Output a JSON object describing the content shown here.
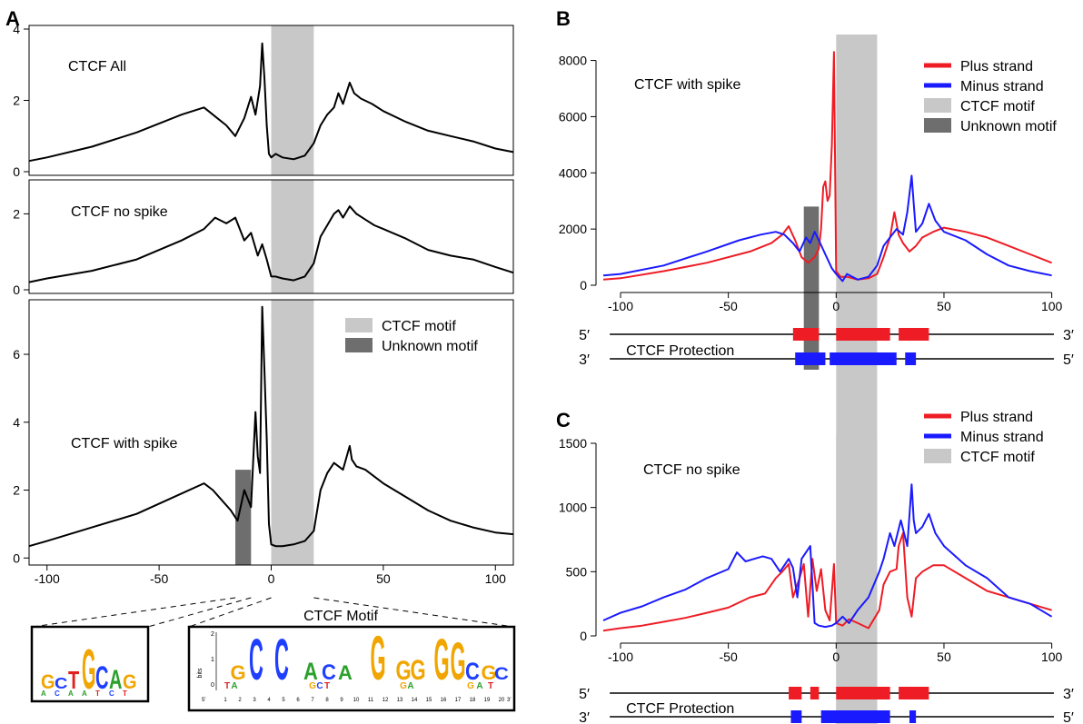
{
  "panel_labels": {
    "A": "A",
    "B": "B",
    "C": "C"
  },
  "colors": {
    "plus": "#ee1c25",
    "minus": "#1a1aff",
    "ctcf_motif": "#c8c8c8",
    "unknown_motif": "#6e6e6e",
    "profile": "#000000"
  },
  "chart_data": [
    {
      "id": "A1",
      "type": "line",
      "title": "CTCF All",
      "xlim": [
        -108,
        108
      ],
      "ylim": [
        0,
        4
      ],
      "yticks": [
        0,
        2,
        4
      ],
      "shade": {
        "ctcf_motif": [
          0,
          19
        ]
      },
      "series": [
        {
          "x": [
            -108,
            -100,
            -80,
            -60,
            -40,
            -30,
            -25,
            -20,
            -16,
            -12,
            -9,
            -7,
            -5,
            -4,
            -3,
            -2,
            -1,
            0,
            2,
            5,
            10,
            15,
            19,
            22,
            25,
            28,
            30,
            32,
            35,
            37,
            40,
            45,
            50,
            60,
            70,
            80,
            90,
            100,
            108
          ],
          "values": [
            0.3,
            0.4,
            0.7,
            1.1,
            1.6,
            1.8,
            1.55,
            1.3,
            1.0,
            1.5,
            2.1,
            1.6,
            2.4,
            3.6,
            2.6,
            1.3,
            0.5,
            0.4,
            0.5,
            0.4,
            0.35,
            0.45,
            0.8,
            1.3,
            1.6,
            1.8,
            2.2,
            1.9,
            2.5,
            2.2,
            2.05,
            1.9,
            1.7,
            1.4,
            1.15,
            1.0,
            0.85,
            0.65,
            0.55
          ]
        }
      ]
    },
    {
      "id": "A2",
      "type": "line",
      "title": "CTCF no spike",
      "xlim": [
        -108,
        108
      ],
      "ylim": [
        0,
        2.8
      ],
      "yticks": [
        0,
        2
      ],
      "shade": {
        "ctcf_motif": [
          0,
          19
        ]
      },
      "series": [
        {
          "x": [
            -108,
            -100,
            -80,
            -60,
            -40,
            -30,
            -25,
            -20,
            -16,
            -12,
            -9,
            -6,
            -4,
            -2,
            0,
            2,
            5,
            10,
            15,
            19,
            22,
            25,
            28,
            30,
            32,
            35,
            38,
            42,
            46,
            50,
            60,
            70,
            80,
            90,
            100,
            108
          ],
          "values": [
            0.2,
            0.3,
            0.5,
            0.8,
            1.3,
            1.6,
            1.9,
            1.75,
            1.9,
            1.3,
            1.5,
            0.9,
            1.2,
            0.8,
            0.35,
            0.35,
            0.3,
            0.25,
            0.35,
            0.7,
            1.4,
            1.7,
            2.0,
            2.1,
            1.9,
            2.2,
            2.0,
            1.85,
            1.7,
            1.6,
            1.35,
            1.05,
            0.9,
            0.8,
            0.6,
            0.45
          ]
        }
      ]
    },
    {
      "id": "A3",
      "type": "line",
      "title": "CTCF with spike",
      "xlim": [
        -108,
        108
      ],
      "ylim": [
        -0.1,
        7.5
      ],
      "yticks": [
        0,
        2,
        4,
        6
      ],
      "xticks": [
        -100,
        -50,
        0,
        50,
        100
      ],
      "shade": {
        "ctcf_motif": [
          0,
          19
        ],
        "unknown_motif": [
          -16,
          -9
        ]
      },
      "unknown_motif_height": 2.6,
      "legend": [
        "CTCF motif",
        "Unknown motif"
      ],
      "series": [
        {
          "x": [
            -108,
            -100,
            -80,
            -60,
            -40,
            -30,
            -26,
            -22,
            -18,
            -15,
            -12,
            -9,
            -7,
            -6,
            -5,
            -4,
            -3,
            -2,
            -1,
            0,
            2,
            5,
            10,
            15,
            19,
            22,
            25,
            28,
            32,
            35,
            36,
            38,
            42,
            46,
            50,
            60,
            70,
            80,
            90,
            100,
            108
          ],
          "values": [
            0.35,
            0.5,
            0.9,
            1.3,
            1.9,
            2.2,
            2.0,
            1.7,
            1.4,
            1.1,
            2.0,
            1.5,
            4.3,
            3.0,
            2.5,
            7.4,
            5.5,
            3.5,
            1.0,
            0.4,
            0.35,
            0.35,
            0.4,
            0.5,
            0.8,
            2.0,
            2.5,
            2.8,
            2.6,
            3.3,
            2.9,
            2.7,
            2.6,
            2.4,
            2.2,
            1.8,
            1.4,
            1.1,
            0.9,
            0.75,
            0.7
          ]
        }
      ]
    },
    {
      "id": "B",
      "type": "line",
      "title": "CTCF with spike",
      "xlim": [
        -108,
        101
      ],
      "ylim": [
        0,
        8600
      ],
      "yticks": [
        0,
        2000,
        4000,
        6000,
        8000
      ],
      "xticks": [
        -100,
        -50,
        0,
        50,
        100
      ],
      "shade": {
        "ctcf_motif": [
          0,
          19
        ],
        "unknown_motif": [
          -15,
          -8
        ]
      },
      "unknown_motif_height": 2800,
      "legend": [
        "Plus strand",
        "Minus strand",
        "CTCF motif",
        "Unknown motif"
      ],
      "series": [
        {
          "name": "Plus strand",
          "x": [
            -108,
            -100,
            -80,
            -60,
            -40,
            -30,
            -25,
            -22,
            -19,
            -16,
            -13,
            -10,
            -8,
            -7,
            -6,
            -5,
            -4,
            -3,
            -2,
            -1,
            0,
            2,
            5,
            10,
            15,
            19,
            22,
            25,
            27,
            29,
            31,
            34,
            37,
            40,
            45,
            50,
            60,
            70,
            80,
            90,
            100
          ],
          "values": [
            200,
            250,
            500,
            800,
            1200,
            1500,
            1800,
            2100,
            1600,
            1000,
            800,
            1000,
            1300,
            2000,
            3500,
            3700,
            3000,
            3200,
            5000,
            8300,
            500,
            300,
            300,
            200,
            250,
            400,
            1000,
            1700,
            2600,
            1800,
            1500,
            1200,
            1400,
            1700,
            1900,
            2050,
            1900,
            1700,
            1400,
            1100,
            800
          ]
        },
        {
          "name": "Minus strand",
          "x": [
            -108,
            -100,
            -80,
            -60,
            -45,
            -35,
            -28,
            -24,
            -20,
            -17,
            -14,
            -12,
            -10,
            -8,
            -5,
            -2,
            0,
            3,
            5,
            10,
            15,
            19,
            22,
            25,
            28,
            31,
            33,
            35,
            36,
            37,
            40,
            43,
            46,
            50,
            60,
            70,
            80,
            90,
            100
          ],
          "values": [
            350,
            400,
            700,
            1200,
            1600,
            1800,
            1900,
            1800,
            1500,
            1200,
            1700,
            1500,
            1900,
            1600,
            1100,
            600,
            400,
            150,
            400,
            200,
            300,
            700,
            1400,
            1700,
            2000,
            1800,
            2600,
            3900,
            2900,
            1900,
            2200,
            2900,
            2300,
            1900,
            1600,
            1100,
            700,
            500,
            350
          ]
        }
      ],
      "protection": {
        "five_prime": "5′",
        "three_prime": "3′",
        "label": "CTCF Protection",
        "plus_blocks": [
          [
            -20,
            -8
          ],
          [
            0,
            25
          ],
          [
            29,
            43
          ]
        ],
        "minus_blocks": [
          [
            -19,
            -5
          ],
          [
            -3,
            28
          ],
          [
            32,
            37
          ]
        ]
      }
    },
    {
      "id": "C",
      "type": "line",
      "title": "CTCF no spike",
      "xlim": [
        -108,
        101
      ],
      "ylim": [
        0,
        1500
      ],
      "yticks": [
        0,
        500,
        1000,
        1500
      ],
      "xticks": [
        -100,
        -50,
        0,
        50,
        100
      ],
      "shade": {
        "ctcf_motif": [
          0,
          19
        ]
      },
      "legend": [
        "Plus strand",
        "Minus strand",
        "CTCF motif"
      ],
      "series": [
        {
          "name": "Plus strand",
          "x": [
            -108,
            -100,
            -90,
            -80,
            -70,
            -60,
            -50,
            -40,
            -33,
            -28,
            -25,
            -22,
            -20,
            -17,
            -15,
            -13,
            -11,
            -9,
            -7,
            -5,
            -3,
            -1,
            0,
            3,
            6,
            10,
            15,
            20,
            22,
            25,
            28,
            29,
            31,
            33,
            35,
            37,
            40,
            45,
            50,
            60,
            70,
            80,
            90,
            100
          ],
          "values": [
            40,
            60,
            80,
            110,
            140,
            180,
            220,
            300,
            330,
            450,
            500,
            560,
            300,
            450,
            560,
            150,
            600,
            350,
            520,
            200,
            120,
            560,
            100,
            80,
            130,
            100,
            60,
            200,
            400,
            500,
            520,
            700,
            800,
            300,
            150,
            450,
            500,
            550,
            550,
            450,
            350,
            300,
            250,
            200
          ]
        },
        {
          "name": "Minus strand",
          "x": [
            -108,
            -100,
            -90,
            -80,
            -70,
            -60,
            -50,
            -46,
            -42,
            -38,
            -34,
            -30,
            -26,
            -22,
            -20,
            -18,
            -16,
            -14,
            -12,
            -10,
            -8,
            -5,
            -2,
            0,
            3,
            6,
            10,
            15,
            20,
            22,
            25,
            27,
            30,
            33,
            35,
            36,
            37,
            40,
            43,
            46,
            50,
            60,
            70,
            80,
            90,
            100
          ],
          "values": [
            120,
            180,
            230,
            300,
            360,
            450,
            520,
            650,
            580,
            600,
            620,
            600,
            500,
            600,
            530,
            300,
            600,
            650,
            700,
            100,
            80,
            70,
            80,
            100,
            150,
            100,
            200,
            300,
            500,
            600,
            800,
            700,
            900,
            700,
            1180,
            900,
            800,
            850,
            950,
            800,
            700,
            550,
            450,
            300,
            250,
            150
          ]
        }
      ],
      "protection": {
        "five_prime": "5′",
        "three_prime": "3′",
        "label": "CTCF Protection",
        "plus_blocks": [
          [
            -22,
            -16
          ],
          [
            -12,
            -8
          ],
          [
            0,
            25
          ],
          [
            29,
            43
          ]
        ],
        "minus_blocks": [
          [
            -21,
            -16
          ],
          [
            -7,
            25
          ],
          [
            34,
            37
          ]
        ]
      }
    }
  ],
  "motifs": {
    "title": "CTCF Motif",
    "ctcf_letters": "GCCACAGGGGGCGC",
    "ctcf_small_letters": "TAGCTGAGAT",
    "unknown_letters": "GCTGCAG",
    "unknown_small": "ACAATCT",
    "ylabel": "bits",
    "ytick_labels": [
      "2",
      "1",
      "0"
    ],
    "positions": [
      "1",
      "2",
      "3",
      "4",
      "5",
      "6",
      "7",
      "8",
      "9",
      "10",
      "11",
      "12",
      "13",
      "14",
      "15",
      "16",
      "17",
      "18",
      "19",
      "20"
    ],
    "five_prime": "5′",
    "three_prime": "3′"
  }
}
